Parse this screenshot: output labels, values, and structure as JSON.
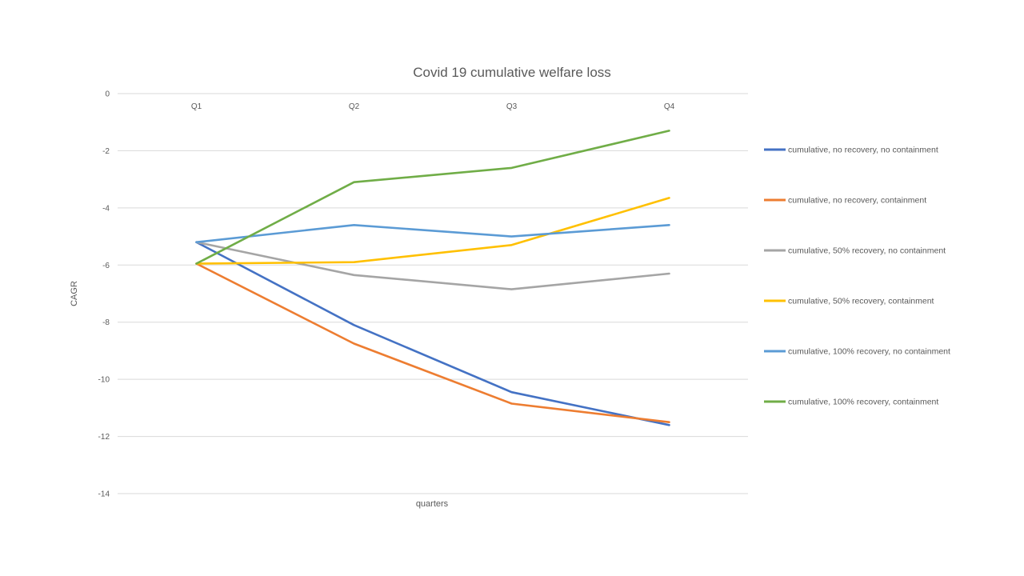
{
  "chart_data": {
    "type": "line",
    "title": "Covid 19 cumulative welfare loss",
    "xlabel": "quarters",
    "ylabel": "CAGR",
    "categories": [
      "Q1",
      "Q2",
      "Q3",
      "Q4"
    ],
    "ylim": [
      -14,
      0
    ],
    "yticks": [
      0,
      -2,
      -4,
      -6,
      -8,
      -10,
      -12,
      -14
    ],
    "grid": true,
    "legend_position": "right",
    "x_axis_position": "top",
    "series": [
      {
        "name": "cumulative, no recovery, no containment",
        "color": "#4472C4",
        "values": [
          -5.2,
          -8.1,
          -10.45,
          -11.6
        ]
      },
      {
        "name": "cumulative, no recovery, containment",
        "color": "#ED7D31",
        "values": [
          -5.95,
          -8.75,
          -10.85,
          -11.5
        ]
      },
      {
        "name": "cumulative, 50% recovery, no containment",
        "color": "#A5A5A5",
        "values": [
          -5.2,
          -6.35,
          -6.85,
          -6.3
        ]
      },
      {
        "name": "cumulative, 50% recovery, containment",
        "color": "#FFC000",
        "values": [
          -5.95,
          -5.9,
          -5.3,
          -3.65
        ]
      },
      {
        "name": "cumulative, 100% recovery, no containment",
        "color": "#5B9BD5",
        "values": [
          -5.2,
          -4.6,
          -5.0,
          -4.6
        ]
      },
      {
        "name": "cumulative, 100% recovery, containment",
        "color": "#70AD47",
        "values": [
          -5.95,
          -3.1,
          -2.6,
          -1.3
        ]
      }
    ]
  }
}
